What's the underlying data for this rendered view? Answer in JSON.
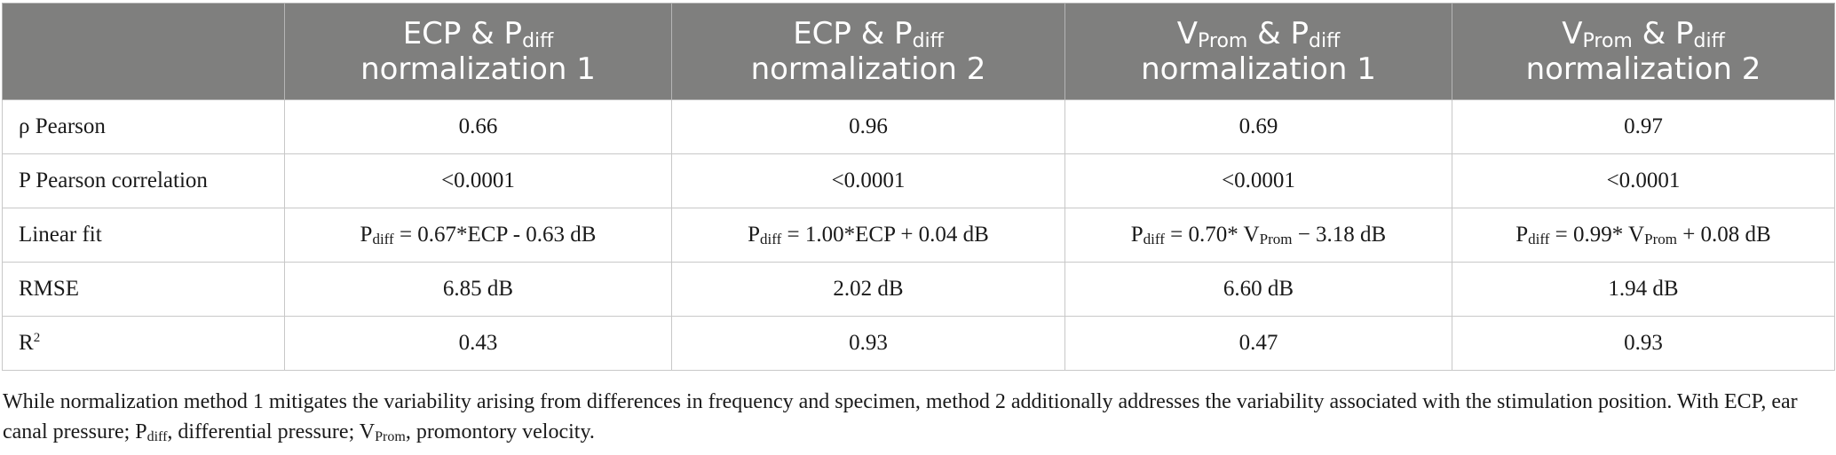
{
  "table": {
    "header": {
      "col0": "",
      "col1": {
        "a": "ECP & P",
        "sub": "diff",
        "b": "normalization 1"
      },
      "col2": {
        "a": "ECP & P",
        "sub": "diff",
        "b": "normalization 2"
      },
      "col3": {
        "v": "V",
        "vsub": "Prom",
        "a": " & P",
        "sub": "diff",
        "b": "normalization 1"
      },
      "col4": {
        "v": "V",
        "vsub": "Prom",
        "a": " & P",
        "sub": "diff",
        "b": "normalization 2"
      }
    },
    "rows": {
      "pearson": {
        "label": "ρ Pearson",
        "values": [
          "0.66",
          "0.96",
          "0.69",
          "0.97"
        ]
      },
      "p_corr": {
        "label": "P Pearson correlation",
        "values": [
          "<0.0001",
          "<0.0001",
          "<0.0001",
          "<0.0001"
        ]
      },
      "linear": {
        "label": "Linear fit",
        "c1": {
          "p": "P",
          "psub": "diff",
          "rest": " = 0.67*ECP - 0.63 dB"
        },
        "c2": {
          "p": "P",
          "psub": "diff",
          "rest": " = 1.00*ECP + 0.04 dB"
        },
        "c3": {
          "p": "P",
          "psub": "diff",
          "mid": " = 0.70* V",
          "vsub": "Prom",
          "rest": " − 3.18 dB"
        },
        "c4": {
          "p": "P",
          "psub": "diff",
          "mid": " = 0.99* V",
          "vsub": "Prom",
          "rest": " + 0.08 dB"
        }
      },
      "rmse": {
        "label": "RMSE",
        "values": [
          "6.85 dB",
          "2.02 dB",
          "6.60 dB",
          "1.94 dB"
        ]
      },
      "r2": {
        "label": "R",
        "label_sup": "2",
        "values": [
          "0.43",
          "0.93",
          "0.47",
          "0.93"
        ]
      }
    }
  },
  "caption": {
    "part1": "While normalization method 1 mitigates the variability arising from differences in frequency and specimen, method 2 additionally addresses the variability associated with the stimulation position. With ECP, ear canal pressure; P",
    "sub1": "diff",
    "part2": ", differential pressure; V",
    "sub2": "Prom",
    "part3": ", promontory velocity."
  }
}
